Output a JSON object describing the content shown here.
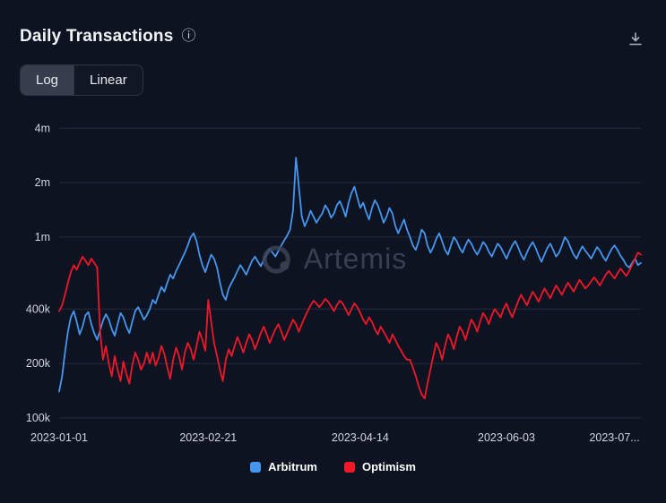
{
  "header": {
    "title": "Daily Transactions"
  },
  "icons": {
    "info": "ⓘ",
    "download": "download-tray-arrow"
  },
  "scale_toggle": {
    "options": [
      {
        "label": "Log",
        "active": true
      },
      {
        "label": "Linear",
        "active": false
      }
    ]
  },
  "watermark": {
    "text": "Artemis"
  },
  "legend": {
    "items": [
      {
        "label": "Arbitrum",
        "color": "#4596ef"
      },
      {
        "label": "Optimism",
        "color": "#f01828"
      }
    ]
  },
  "colors": {
    "background": "#0e1322",
    "grid": "#242b3c",
    "axis_text": "#d2d6de",
    "arbitrum": "#4596ef",
    "optimism": "#f01828"
  },
  "chart_data": {
    "type": "line",
    "title": "Daily Transactions",
    "y_scale": "log",
    "grid": "horizontal",
    "legend_position": "bottom",
    "y_domain": [
      100000,
      4600000
    ],
    "y_ticks": [
      {
        "value": 4000000,
        "label": "4m"
      },
      {
        "value": 2000000,
        "label": "2m"
      },
      {
        "value": 1000000,
        "label": "1m"
      },
      {
        "value": 400000,
        "label": "400k"
      },
      {
        "value": 200000,
        "label": "200k"
      },
      {
        "value": 100000,
        "label": "100k"
      }
    ],
    "x_ticks": [
      {
        "index": 0,
        "label": "2023-01-01"
      },
      {
        "index": 51,
        "label": "2023-02-21"
      },
      {
        "index": 103,
        "label": "2023-04-14"
      },
      {
        "index": 153,
        "label": "2023-06-03"
      },
      {
        "index": 190,
        "label": "2023-07..."
      }
    ],
    "series": [
      {
        "name": "Arbitrum",
        "color": "#4596ef",
        "values": [
          140000,
          170000,
          230000,
          300000,
          360000,
          390000,
          340000,
          290000,
          320000,
          370000,
          385000,
          330000,
          295000,
          270000,
          305000,
          345000,
          375000,
          350000,
          310000,
          285000,
          330000,
          380000,
          360000,
          320000,
          295000,
          340000,
          390000,
          410000,
          380000,
          350000,
          370000,
          400000,
          450000,
          430000,
          480000,
          530000,
          500000,
          560000,
          620000,
          590000,
          650000,
          700000,
          760000,
          820000,
          900000,
          1000000,
          1050000,
          950000,
          800000,
          700000,
          640000,
          720000,
          800000,
          760000,
          680000,
          560000,
          480000,
          450000,
          520000,
          560000,
          600000,
          650000,
          700000,
          660000,
          620000,
          680000,
          740000,
          780000,
          730000,
          690000,
          750000,
          810000,
          860000,
          820000,
          780000,
          840000,
          900000,
          960000,
          1020000,
          1100000,
          1400000,
          2750000,
          1900000,
          1300000,
          1150000,
          1250000,
          1400000,
          1300000,
          1200000,
          1280000,
          1350000,
          1500000,
          1420000,
          1280000,
          1350000,
          1500000,
          1580000,
          1450000,
          1300000,
          1550000,
          1750000,
          1900000,
          1650000,
          1450000,
          1550000,
          1380000,
          1250000,
          1450000,
          1600000,
          1500000,
          1350000,
          1200000,
          1300000,
          1450000,
          1350000,
          1150000,
          1050000,
          1150000,
          1250000,
          1100000,
          1000000,
          900000,
          850000,
          950000,
          1100000,
          1050000,
          900000,
          820000,
          880000,
          980000,
          1050000,
          950000,
          850000,
          800000,
          900000,
          1000000,
          950000,
          870000,
          820000,
          900000,
          970000,
          920000,
          850000,
          800000,
          860000,
          940000,
          900000,
          830000,
          780000,
          850000,
          920000,
          880000,
          820000,
          760000,
          830000,
          900000,
          950000,
          880000,
          800000,
          750000,
          820000,
          890000,
          940000,
          870000,
          790000,
          730000,
          800000,
          870000,
          920000,
          850000,
          780000,
          820000,
          900000,
          1000000,
          950000,
          870000,
          800000,
          760000,
          830000,
          890000,
          840000,
          800000,
          760000,
          820000,
          880000,
          840000,
          780000,
          740000,
          800000,
          860000,
          900000,
          850000,
          790000,
          750000,
          700000,
          680000,
          720000,
          760000,
          700000,
          720000
        ]
      },
      {
        "name": "Optimism",
        "color": "#f01828",
        "values": [
          390000,
          420000,
          480000,
          560000,
          640000,
          700000,
          660000,
          720000,
          780000,
          740000,
          700000,
          760000,
          720000,
          680000,
          300000,
          210000,
          250000,
          200000,
          170000,
          220000,
          185000,
          160000,
          205000,
          175000,
          155000,
          195000,
          230000,
          210000,
          185000,
          200000,
          230000,
          200000,
          230000,
          195000,
          215000,
          250000,
          225000,
          190000,
          165000,
          210000,
          245000,
          220000,
          185000,
          230000,
          260000,
          240000,
          210000,
          250000,
          300000,
          270000,
          235000,
          450000,
          340000,
          260000,
          220000,
          185000,
          160000,
          210000,
          240000,
          220000,
          250000,
          280000,
          255000,
          230000,
          260000,
          290000,
          270000,
          240000,
          265000,
          295000,
          320000,
          290000,
          260000,
          285000,
          310000,
          330000,
          300000,
          270000,
          295000,
          320000,
          350000,
          330000,
          300000,
          330000,
          360000,
          390000,
          420000,
          445000,
          430000,
          410000,
          430000,
          455000,
          440000,
          415000,
          390000,
          420000,
          445000,
          430000,
          400000,
          370000,
          400000,
          430000,
          410000,
          380000,
          350000,
          330000,
          360000,
          340000,
          310000,
          290000,
          320000,
          300000,
          280000,
          260000,
          290000,
          270000,
          250000,
          235000,
          220000,
          210000,
          210000,
          190000,
          170000,
          150000,
          135000,
          128000,
          155000,
          185000,
          220000,
          260000,
          240000,
          210000,
          250000,
          290000,
          270000,
          240000,
          280000,
          320000,
          300000,
          270000,
          310000,
          350000,
          330000,
          300000,
          340000,
          380000,
          360000,
          330000,
          370000,
          400000,
          380000,
          360000,
          400000,
          430000,
          390000,
          360000,
          400000,
          440000,
          480000,
          450000,
          420000,
          460000,
          500000,
          470000,
          440000,
          480000,
          520000,
          490000,
          460000,
          500000,
          540000,
          510000,
          480000,
          520000,
          560000,
          530000,
          500000,
          540000,
          580000,
          550000,
          520000,
          540000,
          570000,
          600000,
          570000,
          540000,
          580000,
          620000,
          650000,
          620000,
          590000,
          630000,
          670000,
          640000,
          610000,
          650000,
          700000,
          760000,
          820000,
          800000
        ]
      }
    ]
  }
}
